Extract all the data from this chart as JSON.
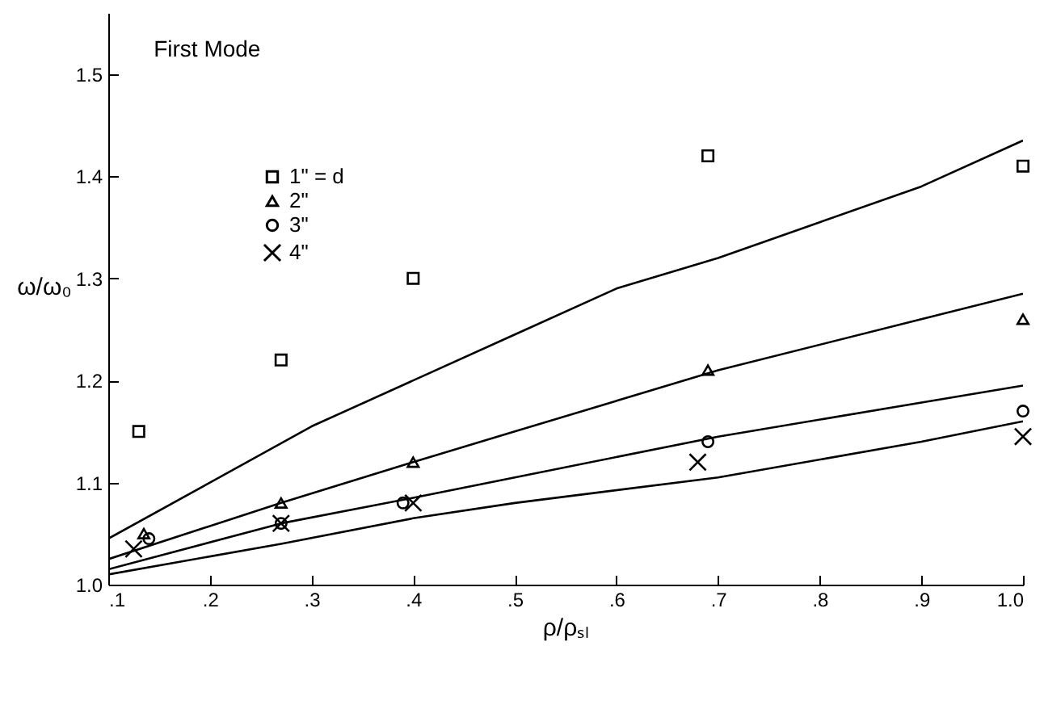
{
  "chart_data": {
    "type": "scatter",
    "title": "First Mode",
    "xlabel": "ρ/ρₛₗ",
    "ylabel": "ω/ω₀",
    "xlim": [
      0.1,
      1.0
    ],
    "ylim": [
      1.0,
      1.56
    ],
    "xticks": [
      {
        "value": 0.1,
        "label": ".1"
      },
      {
        "value": 0.2,
        "label": ".2"
      },
      {
        "value": 0.3,
        "label": ".3"
      },
      {
        "value": 0.4,
        "label": ".4"
      },
      {
        "value": 0.5,
        "label": ".5"
      },
      {
        "value": 0.6,
        "label": ".6"
      },
      {
        "value": 0.7,
        "label": ".7"
      },
      {
        "value": 0.8,
        "label": ".8"
      },
      {
        "value": 0.9,
        "label": ".9"
      },
      {
        "value": 1.0,
        "label": "1.0"
      }
    ],
    "yticks": [
      {
        "value": 1.0,
        "label": "1.0"
      },
      1.1,
      1.2,
      1.3,
      1.4,
      1.5
    ],
    "grid": false,
    "legend": "top left",
    "series": [
      {
        "name": "1\" = d",
        "marker": "square",
        "color": "#000000",
        "x": [
          0.13,
          0.27,
          0.4,
          0.69,
          1.0
        ],
        "values": [
          1.15,
          1.22,
          1.3,
          1.42,
          1.41
        ]
      },
      {
        "name": "2\"",
        "marker": "triangle",
        "color": "#000000",
        "x": [
          0.135,
          0.27,
          0.4,
          0.69,
          1.0
        ],
        "values": [
          1.05,
          1.08,
          1.12,
          1.21,
          1.26
        ]
      },
      {
        "name": "3\"",
        "marker": "circle",
        "color": "#000000",
        "x": [
          0.14,
          0.27,
          0.39,
          0.69,
          1.0
        ],
        "values": [
          1.045,
          1.06,
          1.08,
          1.14,
          1.17
        ]
      },
      {
        "name": "4\"",
        "marker": "cross",
        "color": "#000000",
        "x": [
          0.125,
          0.27,
          0.4,
          0.68,
          1.0
        ],
        "values": [
          1.035,
          1.06,
          1.08,
          1.12,
          1.145
        ]
      },
      {
        "type": "line",
        "color": "#000000",
        "x": [
          0.1,
          0.2,
          0.3,
          0.4,
          0.5,
          0.6,
          0.7,
          0.8,
          0.9,
          1.0
        ],
        "values": [
          1.045,
          1.1,
          1.155,
          1.2,
          1.245,
          1.29,
          1.32,
          1.355,
          1.39,
          1.435
        ]
      },
      {
        "type": "line",
        "color": "#000000",
        "x": [
          0.1,
          0.27,
          0.4,
          0.5,
          0.7,
          0.9,
          1.0
        ],
        "values": [
          1.025,
          1.08,
          1.12,
          1.15,
          1.21,
          1.26,
          1.285
        ]
      },
      {
        "type": "line",
        "color": "#000000",
        "x": [
          0.1,
          0.27,
          0.4,
          0.5,
          0.7,
          1.0
        ],
        "values": [
          1.015,
          1.06,
          1.085,
          1.105,
          1.145,
          1.195
        ]
      },
      {
        "type": "line",
        "color": "#000000",
        "x": [
          0.1,
          0.27,
          0.4,
          0.5,
          0.7,
          0.9,
          1.0
        ],
        "values": [
          1.01,
          1.04,
          1.065,
          1.08,
          1.105,
          1.14,
          1.16
        ]
      }
    ]
  }
}
